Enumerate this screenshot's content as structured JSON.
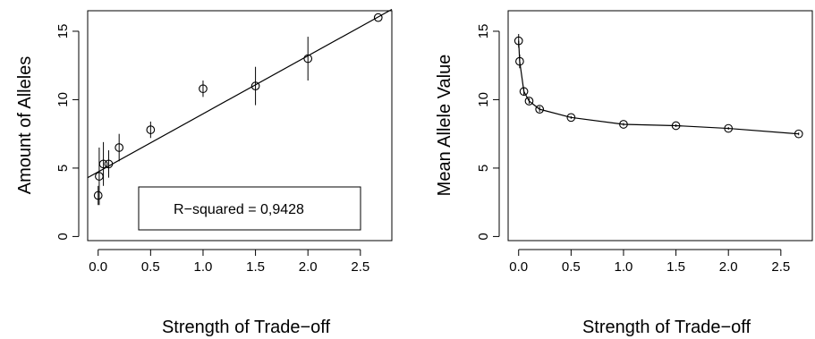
{
  "chart_data": [
    {
      "type": "scatter",
      "xlabel": "Strength of Trade−off",
      "ylabel": "Amount of Alleles",
      "xlim": [
        -0.1,
        2.8
      ],
      "ylim": [
        -0.3,
        16.5
      ],
      "xticks": [
        "0.0",
        "0.5",
        "1.0",
        "1.5",
        "2.0",
        "2.5"
      ],
      "yticks": [
        "0",
        "5",
        "10",
        "15"
      ],
      "grid": false,
      "points": [
        {
          "x": 0.0,
          "y": 3.0,
          "err": 0.7
        },
        {
          "x": 0.01,
          "y": 4.4,
          "err": 2.1
        },
        {
          "x": 0.05,
          "y": 5.3,
          "err": 1.6
        },
        {
          "x": 0.1,
          "y": 5.3,
          "err": 1.0
        },
        {
          "x": 0.2,
          "y": 6.5,
          "err": 1.0
        },
        {
          "x": 0.5,
          "y": 7.8,
          "err": 0.6
        },
        {
          "x": 1.0,
          "y": 10.8,
          "err": 0.6
        },
        {
          "x": 1.5,
          "y": 11.0,
          "err": 1.4
        },
        {
          "x": 2.0,
          "y": 13.0,
          "err": 1.6
        },
        {
          "x": 2.67,
          "y": 16.0,
          "err": 0.0
        }
      ],
      "fit_line": {
        "x": [
          -0.1,
          2.8
        ],
        "y": [
          4.3,
          16.6
        ]
      },
      "annotation": "R−squared = 0,9428"
    },
    {
      "type": "line",
      "xlabel": "Strength of Trade−off",
      "ylabel": "Mean Allele Value",
      "xlim": [
        -0.1,
        2.8
      ],
      "ylim": [
        -0.3,
        16.5
      ],
      "xticks": [
        "0.0",
        "0.5",
        "1.0",
        "1.5",
        "2.0",
        "2.5"
      ],
      "yticks": [
        "0",
        "5",
        "10",
        "15"
      ],
      "grid": false,
      "points": [
        {
          "x": 0.0,
          "y": 14.3,
          "err": 0.5
        },
        {
          "x": 0.01,
          "y": 12.8,
          "err": 0.5
        },
        {
          "x": 0.05,
          "y": 10.6,
          "err": 0.3
        },
        {
          "x": 0.1,
          "y": 9.9,
          "err": 0.2
        },
        {
          "x": 0.2,
          "y": 9.3,
          "err": 0.2
        },
        {
          "x": 0.5,
          "y": 8.7,
          "err": 0.1
        },
        {
          "x": 1.0,
          "y": 8.2,
          "err": 0.1
        },
        {
          "x": 1.5,
          "y": 8.1,
          "err": 0.1
        },
        {
          "x": 2.0,
          "y": 7.9,
          "err": 0.1
        },
        {
          "x": 2.67,
          "y": 7.5,
          "err": 0.1
        }
      ]
    }
  ]
}
